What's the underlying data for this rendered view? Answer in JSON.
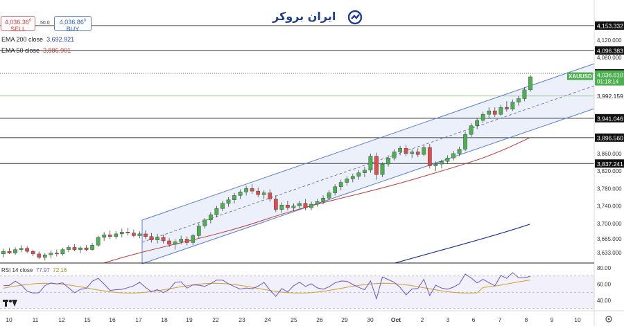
{
  "header": {
    "sell_price": "4,036.36",
    "sell_sup": "0",
    "sell_label": "SELL",
    "spread": "50.0",
    "buy_price": "4,036.86",
    "buy_sup": "0",
    "buy_label": "BUY"
  },
  "logo": {
    "text": "ایران بروکر",
    "color": "#1f3d8c"
  },
  "indicators": {
    "ema200_label": "EMA 200 close",
    "ema200_value": "3,692.921",
    "ema50_label": "EMA 50 close",
    "ema50_value": "3,886.901"
  },
  "rsi": {
    "label": "RSI 14 close",
    "value1": "77.97",
    "value2": "72.16"
  },
  "colors": {
    "up": "#4caf50",
    "down": "#e04b4b",
    "ema200": "#1f2f9c",
    "ema50": "#c0383a",
    "rsi": "#6b55c8",
    "rsi_ma": "#c8a22a",
    "channel": "#5b7bd5"
  },
  "chart_data": {
    "type": "candlestick",
    "symbol": "XAUUSD",
    "current_price": "4,036.610",
    "countdown": "01:18:14",
    "y_ticks": [
      "4,120.000",
      "4,080.000",
      "3,860.000",
      "3,820.000",
      "3,780.000",
      "3,740.000",
      "3,700.000",
      "3,665.000",
      "3,633.000"
    ],
    "price_lines": [
      {
        "value": "4,153.332",
        "style": "solid"
      },
      {
        "value": "4,096.383",
        "style": "solid"
      },
      {
        "value": "4,043.921",
        "style": "dotted"
      },
      {
        "value": "3,992.159",
        "style": "green"
      },
      {
        "value": "3,941.046",
        "style": "solid"
      },
      {
        "value": "3,896.560",
        "style": "solid"
      },
      {
        "value": "3,837.241",
        "style": "solid"
      }
    ],
    "x_ticks": [
      "10",
      "11",
      "12",
      "15",
      "16",
      "17",
      "18",
      "19",
      "22",
      "23",
      "24",
      "25",
      "26",
      "29",
      "30",
      "Oct",
      "2",
      "3",
      "6",
      "7",
      "8",
      "9",
      "10"
    ],
    "rsi_ticks": [
      "80.00",
      "60.00",
      "40.00"
    ],
    "candles": [
      [
        3630,
        3642,
        3622,
        3636
      ],
      [
        3636,
        3644,
        3630,
        3632
      ],
      [
        3632,
        3645,
        3628,
        3640
      ],
      [
        3640,
        3650,
        3634,
        3643
      ],
      [
        3643,
        3648,
        3632,
        3636
      ],
      [
        3636,
        3640,
        3625,
        3630
      ],
      [
        3630,
        3636,
        3618,
        3622
      ],
      [
        3622,
        3632,
        3615,
        3628
      ],
      [
        3628,
        3638,
        3620,
        3632
      ],
      [
        3632,
        3640,
        3624,
        3630
      ],
      [
        3630,
        3644,
        3626,
        3640
      ],
      [
        3640,
        3650,
        3634,
        3645
      ],
      [
        3645,
        3652,
        3636,
        3640
      ],
      [
        3640,
        3648,
        3632,
        3644
      ],
      [
        3644,
        3650,
        3636,
        3640
      ],
      [
        3640,
        3655,
        3638,
        3650
      ],
      [
        3650,
        3672,
        3646,
        3668
      ],
      [
        3668,
        3680,
        3660,
        3674
      ],
      [
        3674,
        3684,
        3664,
        3670
      ],
      [
        3670,
        3682,
        3664,
        3676
      ],
      [
        3676,
        3688,
        3668,
        3680
      ],
      [
        3680,
        3690,
        3672,
        3678
      ],
      [
        3678,
        3686,
        3668,
        3672
      ],
      [
        3672,
        3682,
        3666,
        3676
      ],
      [
        3676,
        3684,
        3664,
        3670
      ],
      [
        3670,
        3678,
        3656,
        3662
      ],
      [
        3662,
        3676,
        3654,
        3668
      ],
      [
        3668,
        3674,
        3654,
        3660
      ],
      [
        3660,
        3666,
        3646,
        3652
      ],
      [
        3652,
        3664,
        3640,
        3658
      ],
      [
        3658,
        3672,
        3652,
        3664
      ],
      [
        3664,
        3670,
        3650,
        3656
      ],
      [
        3656,
        3676,
        3650,
        3672
      ],
      [
        3672,
        3700,
        3666,
        3694
      ],
      [
        3694,
        3712,
        3688,
        3708
      ],
      [
        3708,
        3726,
        3700,
        3720
      ],
      [
        3720,
        3740,
        3714,
        3734
      ],
      [
        3734,
        3752,
        3728,
        3746
      ],
      [
        3746,
        3760,
        3738,
        3754
      ],
      [
        3754,
        3770,
        3746,
        3764
      ],
      [
        3764,
        3778,
        3756,
        3772
      ],
      [
        3772,
        3786,
        3764,
        3780
      ],
      [
        3780,
        3790,
        3768,
        3774
      ],
      [
        3774,
        3782,
        3760,
        3766
      ],
      [
        3766,
        3776,
        3756,
        3770
      ],
      [
        3770,
        3778,
        3750,
        3756
      ],
      [
        3756,
        3764,
        3726,
        3732
      ],
      [
        3732,
        3748,
        3724,
        3742
      ],
      [
        3742,
        3752,
        3730,
        3736
      ],
      [
        3736,
        3746,
        3728,
        3740
      ],
      [
        3740,
        3752,
        3734,
        3746
      ],
      [
        3746,
        3756,
        3730,
        3736
      ],
      [
        3736,
        3750,
        3730,
        3744
      ],
      [
        3744,
        3756,
        3738,
        3750
      ],
      [
        3750,
        3764,
        3744,
        3758
      ],
      [
        3758,
        3776,
        3752,
        3770
      ],
      [
        3770,
        3790,
        3764,
        3784
      ],
      [
        3784,
        3800,
        3776,
        3794
      ],
      [
        3794,
        3808,
        3786,
        3802
      ],
      [
        3802,
        3814,
        3794,
        3808
      ],
      [
        3808,
        3822,
        3800,
        3816
      ],
      [
        3816,
        3830,
        3806,
        3822
      ],
      [
        3822,
        3860,
        3816,
        3854
      ],
      [
        3854,
        3862,
        3800,
        3812
      ],
      [
        3812,
        3840,
        3806,
        3836
      ],
      [
        3836,
        3856,
        3830,
        3850
      ],
      [
        3850,
        3870,
        3844,
        3864
      ],
      [
        3864,
        3878,
        3856,
        3872
      ],
      [
        3872,
        3880,
        3854,
        3860
      ],
      [
        3860,
        3870,
        3850,
        3864
      ],
      [
        3864,
        3872,
        3852,
        3858
      ],
      [
        3858,
        3880,
        3854,
        3874
      ],
      [
        3874,
        3882,
        3826,
        3832
      ],
      [
        3832,
        3842,
        3820,
        3836
      ],
      [
        3836,
        3846,
        3826,
        3842
      ],
      [
        3842,
        3856,
        3836,
        3850
      ],
      [
        3850,
        3866,
        3844,
        3860
      ],
      [
        3860,
        3876,
        3854,
        3870
      ],
      [
        3870,
        3910,
        3866,
        3904
      ],
      [
        3904,
        3930,
        3898,
        3924
      ],
      [
        3924,
        3942,
        3916,
        3936
      ],
      [
        3936,
        3956,
        3930,
        3950
      ],
      [
        3950,
        3966,
        3940,
        3958
      ],
      [
        3958,
        3966,
        3944,
        3950
      ],
      [
        3950,
        3972,
        3946,
        3966
      ],
      [
        3966,
        3980,
        3956,
        3962
      ],
      [
        3962,
        3984,
        3958,
        3978
      ],
      [
        3978,
        3992,
        3970,
        3986
      ],
      [
        3986,
        4012,
        3980,
        4006
      ],
      [
        4006,
        4040,
        4002,
        4036
      ]
    ]
  }
}
